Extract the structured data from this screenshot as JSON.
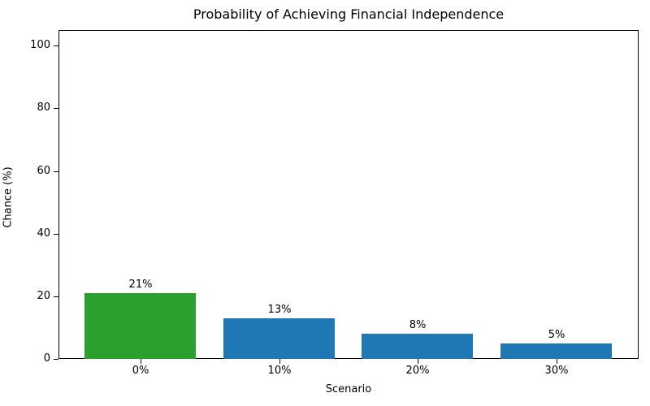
{
  "chart_data": {
    "type": "bar",
    "title": "Probability of Achieving Financial Independence",
    "xlabel": "Scenario",
    "ylabel": "Chance (%)",
    "categories": [
      "0%",
      "10%",
      "20%",
      "30%"
    ],
    "values": [
      21,
      13,
      8,
      5
    ],
    "bar_labels": [
      "21%",
      "13%",
      "8%",
      "5%"
    ],
    "bar_colors": [
      "#2ca02c",
      "#1f77b4",
      "#1f77b4",
      "#1f77b4"
    ],
    "yticks": [
      0,
      20,
      40,
      60,
      80,
      100
    ],
    "ylim": [
      0,
      105
    ],
    "grid": false,
    "legend_position": "none",
    "colors": {
      "highlight_bar": "#2ca02c",
      "default_bar": "#1f77b4",
      "axis": "#000000",
      "background": "#ffffff",
      "text": "#000000"
    }
  }
}
